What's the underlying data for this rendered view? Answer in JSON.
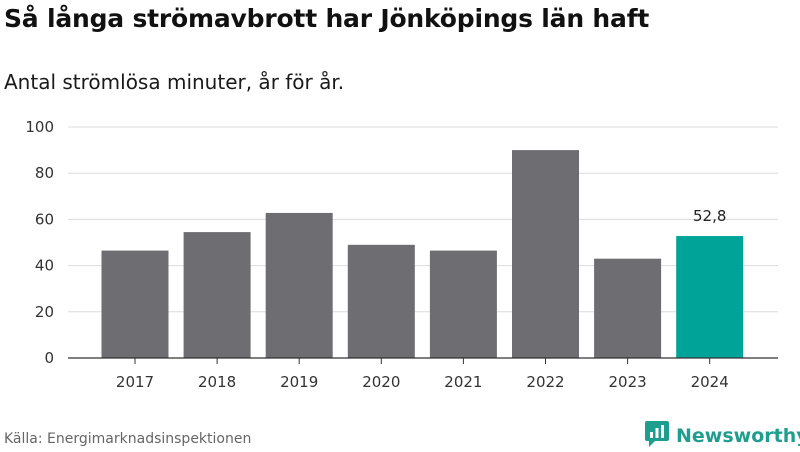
{
  "header": {
    "title": "Så långa strömavbrott har Jönköpings län haft",
    "subtitle": "Antal strömlösa minuter, år för år."
  },
  "footer": {
    "source": "Källa: Energimarknadsinspektionen",
    "brand": "Newsworthy",
    "brand_icon": "newsworthy-logo-icon"
  },
  "colors": {
    "bar": "#6e6d72",
    "highlight": "#00a398",
    "grid": "#dcdcdc",
    "axis": "#333333",
    "brand": "#1f9e8f"
  },
  "chart_data": {
    "type": "bar",
    "title": "Så långa strömavbrott har Jönköpings län haft",
    "subtitle": "Antal strömlösa minuter, år för år.",
    "xlabel": "",
    "ylabel": "",
    "categories": [
      "2017",
      "2018",
      "2019",
      "2020",
      "2021",
      "2022",
      "2023",
      "2024"
    ],
    "values": [
      46.5,
      54.5,
      62.8,
      49,
      46.5,
      90,
      43,
      52.8
    ],
    "highlight_index": 7,
    "data_labels": [
      null,
      null,
      null,
      null,
      null,
      null,
      null,
      "52,8"
    ],
    "ylim": [
      0,
      100
    ],
    "yticks": [
      0,
      20,
      40,
      60,
      80,
      100
    ],
    "grid": true,
    "legend": "none"
  }
}
